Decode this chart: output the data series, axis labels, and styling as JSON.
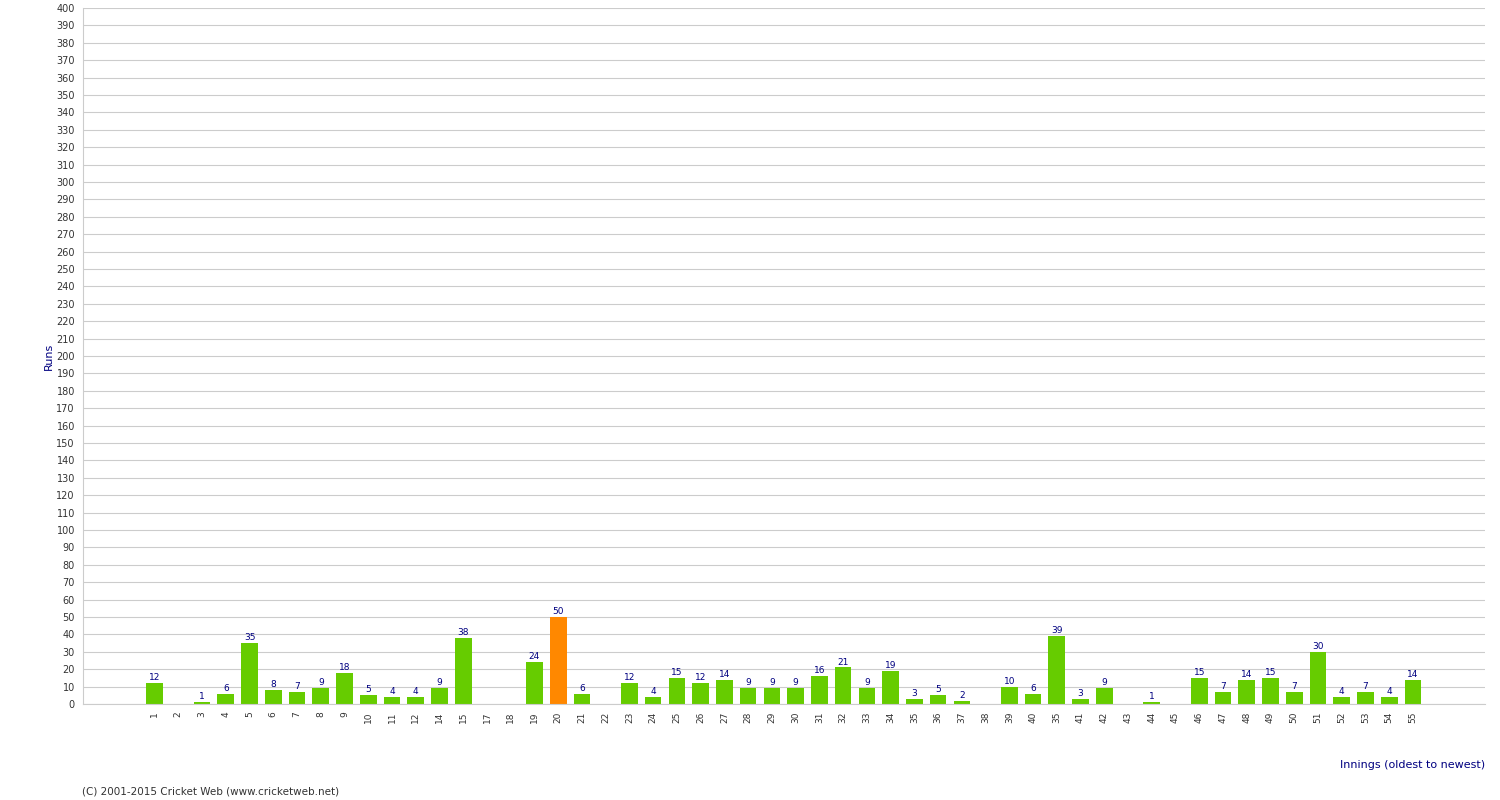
{
  "values": [
    12,
    0,
    1,
    6,
    35,
    8,
    7,
    9,
    18,
    5,
    4,
    4,
    9,
    38,
    0,
    0,
    24,
    50,
    6,
    0,
    12,
    4,
    15,
    12,
    14,
    9,
    9,
    9,
    16,
    21,
    9,
    19,
    3,
    5,
    2,
    0,
    10,
    6,
    39,
    3,
    9,
    0,
    1,
    0,
    15,
    7,
    14,
    15,
    7,
    30,
    4,
    7,
    4,
    14
  ],
  "innings_labels": [
    "1",
    "2",
    "3",
    "4",
    "5",
    "6",
    "7",
    "8",
    "9",
    "10",
    "11",
    "12",
    "14",
    "15",
    "17",
    "18",
    "19",
    "20",
    "21",
    "22",
    "23",
    "24",
    "25",
    "26",
    "27",
    "28",
    "29",
    "30",
    "31",
    "32",
    "33",
    "34",
    "35",
    "36",
    "37",
    "38",
    "39",
    "40",
    "35",
    "41",
    "42",
    "43",
    "44",
    "45",
    "46",
    "47",
    "48",
    "49",
    "50",
    "51",
    "52",
    "53",
    "54",
    "55"
  ],
  "highlight_index": 17,
  "bar_color_normal": "#66cc00",
  "bar_color_highlight": "#ff8800",
  "ylabel": "Runs",
  "xlabel": "Innings (oldest to newest)",
  "ylim": [
    0,
    400
  ],
  "footer": "(C) 2001-2015 Cricket Web (www.cricketweb.net)",
  "background_color": "#ffffff",
  "grid_color": "#cccccc"
}
